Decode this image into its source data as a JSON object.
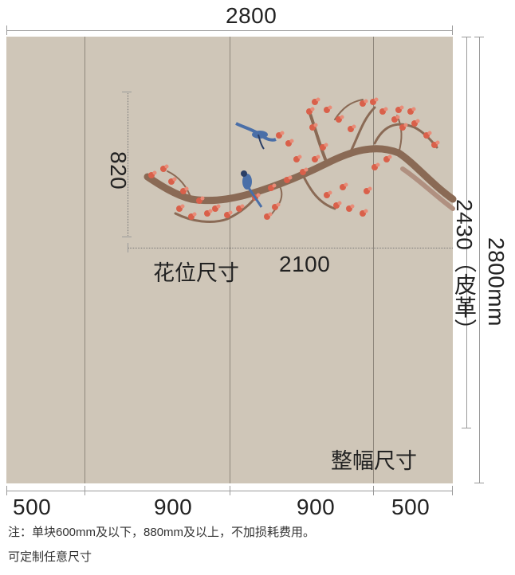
{
  "dimensions": {
    "total_width": "2800",
    "pattern_height": "820",
    "pattern_width": "2100",
    "pattern_label": "花位尺寸",
    "right_height": "2430（皮革）",
    "total_height": "2800mm",
    "full_label": "整幅尺寸",
    "panel_widths": [
      "500",
      "900",
      "900",
      "500"
    ]
  },
  "notes": {
    "line1": "注：单块600mm及以下，880mm及以上，不加损耗费用。",
    "line2": "可定制任意尺寸"
  },
  "colors": {
    "wall": "#cfc6b8",
    "branch": "#8a6a55",
    "blossom": "#d9604a",
    "bird": "#4a6fa8"
  }
}
